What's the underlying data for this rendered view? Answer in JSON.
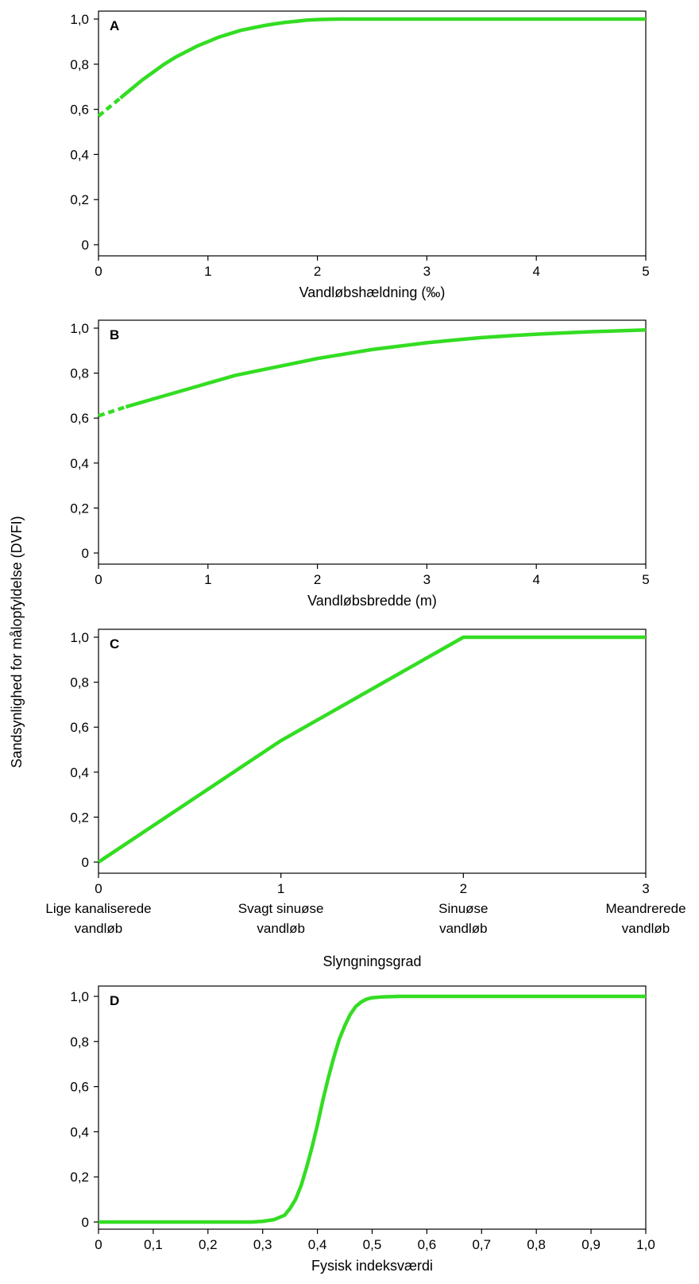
{
  "shared_ylabel": "Sandsynlighed for målopfyldelse (DVFI)",
  "style": {
    "line_color": "#33dd22",
    "axis_color": "#000000"
  },
  "chart_data": [
    {
      "type": "line",
      "panel_label": "A",
      "xlabel": "Vandløbshældning (‰)",
      "xlim": [
        0,
        5
      ],
      "ylim": [
        0,
        1
      ],
      "xticks": [
        0,
        1,
        2,
        3,
        4,
        5
      ],
      "xtick_labels": [
        "0",
        "1",
        "2",
        "3",
        "4",
        "5"
      ],
      "yticks": [
        0,
        0.2,
        0.4,
        0.6,
        0.8,
        1.0
      ],
      "ytick_labels": [
        "0",
        "0,2",
        "0,4",
        "0,6",
        "0,8",
        "1,0"
      ],
      "dashed_until_x": 0.2,
      "series": [
        {
          "x": [
            0,
            0.1,
            0.2,
            0.3,
            0.4,
            0.5,
            0.6,
            0.7,
            0.8,
            0.9,
            1.0,
            1.1,
            1.2,
            1.3,
            1.4,
            1.5,
            1.6,
            1.7,
            1.8,
            1.9,
            2.0,
            2.2,
            2.5,
            3.0,
            3.5,
            4.0,
            4.5,
            5.0
          ],
          "y": [
            0.57,
            0.61,
            0.65,
            0.69,
            0.73,
            0.765,
            0.8,
            0.83,
            0.855,
            0.88,
            0.9,
            0.92,
            0.935,
            0.95,
            0.96,
            0.97,
            0.978,
            0.985,
            0.99,
            0.995,
            0.998,
            1.0,
            1.0,
            1.0,
            1.0,
            1.0,
            1.0,
            1.0
          ]
        }
      ]
    },
    {
      "type": "line",
      "panel_label": "B",
      "xlabel": "Vandløbsbredde (m)",
      "xlim": [
        0,
        5
      ],
      "ylim": [
        0,
        1
      ],
      "xticks": [
        0,
        1,
        2,
        3,
        4,
        5
      ],
      "xtick_labels": [
        "0",
        "1",
        "2",
        "3",
        "4",
        "5"
      ],
      "yticks": [
        0,
        0.2,
        0.4,
        0.6,
        0.8,
        1.0
      ],
      "ytick_labels": [
        "0",
        "0,2",
        "0,4",
        "0,6",
        "0,8",
        "1,0"
      ],
      "dashed_until_x": 0.25,
      "series": [
        {
          "x": [
            0,
            0.25,
            0.5,
            0.75,
            1.0,
            1.25,
            1.5,
            1.75,
            2.0,
            2.25,
            2.5,
            2.75,
            3.0,
            3.25,
            3.5,
            3.75,
            4.0,
            4.25,
            4.5,
            4.75,
            5.0
          ],
          "y": [
            0.61,
            0.65,
            0.685,
            0.72,
            0.755,
            0.79,
            0.815,
            0.84,
            0.865,
            0.885,
            0.905,
            0.92,
            0.935,
            0.947,
            0.958,
            0.966,
            0.973,
            0.979,
            0.984,
            0.988,
            0.992
          ]
        }
      ]
    },
    {
      "type": "line",
      "panel_label": "C",
      "xlabel": "Slyngningsgrad",
      "xlim": [
        0,
        3
      ],
      "ylim": [
        0,
        1
      ],
      "xticks": [
        0,
        1,
        2,
        3
      ],
      "xtick_labels": [
        "0",
        "1",
        "2",
        "3"
      ],
      "yticks": [
        0,
        0.2,
        0.4,
        0.6,
        0.8,
        1.0
      ],
      "ytick_labels": [
        "0",
        "0,2",
        "0,4",
        "0,6",
        "0,8",
        "1,0"
      ],
      "category_labels": [
        [
          "Lige kanaliserede",
          "vandløb"
        ],
        [
          "Svagt sinuøse",
          "vandløb"
        ],
        [
          "Sinuøse",
          "vandløb"
        ],
        [
          "Meandrerede",
          "vandløb"
        ]
      ],
      "series": [
        {
          "x": [
            0,
            1,
            2,
            3
          ],
          "y": [
            0,
            0.54,
            1.0,
            1.0
          ]
        }
      ]
    },
    {
      "type": "line",
      "panel_label": "D",
      "xlabel": "Fysisk indeksværdi",
      "xlim": [
        0,
        1
      ],
      "ylim": [
        0,
        1
      ],
      "xticks": [
        0,
        0.1,
        0.2,
        0.3,
        0.4,
        0.5,
        0.6,
        0.7,
        0.8,
        0.9,
        1.0
      ],
      "xtick_labels": [
        "0",
        "0,1",
        "0,2",
        "0,3",
        "0,4",
        "0,5",
        "0,6",
        "0,7",
        "0,8",
        "0,9",
        "1,0"
      ],
      "yticks": [
        0,
        0.2,
        0.4,
        0.6,
        0.8,
        1.0
      ],
      "ytick_labels": [
        "0",
        "0,2",
        "0,4",
        "0,6",
        "0,8",
        "1,0"
      ],
      "series": [
        {
          "x": [
            0,
            0.1,
            0.2,
            0.28,
            0.3,
            0.32,
            0.34,
            0.35,
            0.36,
            0.37,
            0.38,
            0.39,
            0.4,
            0.41,
            0.42,
            0.43,
            0.44,
            0.45,
            0.46,
            0.47,
            0.48,
            0.49,
            0.5,
            0.52,
            0.55,
            0.6,
            0.7,
            0.8,
            0.9,
            1.0
          ],
          "y": [
            0,
            0,
            0,
            0,
            0.003,
            0.01,
            0.03,
            0.06,
            0.1,
            0.16,
            0.24,
            0.33,
            0.43,
            0.54,
            0.64,
            0.73,
            0.81,
            0.87,
            0.92,
            0.955,
            0.975,
            0.988,
            0.994,
            0.998,
            1.0,
            1.0,
            1.0,
            1.0,
            1.0,
            1.0
          ]
        }
      ]
    }
  ]
}
